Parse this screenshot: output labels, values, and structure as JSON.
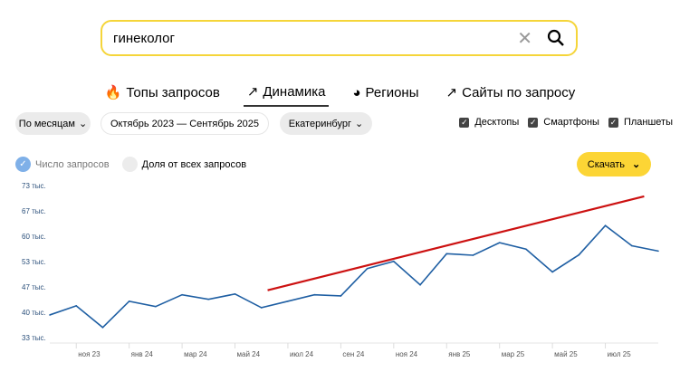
{
  "search": {
    "value": "гинеколог",
    "clear_icon": "close-icon",
    "search_icon": "magnifier-icon"
  },
  "tabs": [
    {
      "label": "Топы запросов",
      "icon": "fire-icon"
    },
    {
      "label": "Динамика",
      "icon": "trend-icon",
      "active": true
    },
    {
      "label": "Регионы",
      "icon": "globe-icon"
    },
    {
      "label": "Сайты по запросу",
      "icon": "external-link-icon"
    }
  ],
  "filters": {
    "period": "По месяцам",
    "range": "Октябрь 2023 — Сентябрь 2025",
    "region": "Екатеринбург"
  },
  "devices": [
    {
      "label": "Десктопы",
      "checked": true
    },
    {
      "label": "Смартфоны",
      "checked": true
    },
    {
      "label": "Планшеты",
      "checked": true
    }
  ],
  "legend": {
    "count": "Число запросов",
    "share": "Доля от всех запросов"
  },
  "download": "Скачать",
  "colors": {
    "accent": "#fcd535",
    "line": "#1f5fa3",
    "trend": "#cc1111",
    "checked_dot": "#7fb0e8"
  },
  "chart_data": {
    "type": "line",
    "x": [
      "окт 23",
      "ноя 23",
      "дек 23",
      "янв 24",
      "фев 24",
      "мар 24",
      "апр 24",
      "май 24",
      "июн 24",
      "июл 24",
      "авг 24",
      "сен 24",
      "окт 24",
      "ноя 24",
      "дек 24",
      "янв 25",
      "фев 25",
      "мар 25",
      "апр 25",
      "май 25",
      "июн 25",
      "июл 25",
      "авг 25",
      "сен 25"
    ],
    "series": [
      {
        "values": [
          39300,
          41700,
          36000,
          42900,
          41500,
          44600,
          43400,
          44800,
          41200,
          42900,
          44600,
          44300,
          51500,
          53400,
          47200,
          55400,
          55000,
          58300,
          56600,
          50600,
          55100,
          62800,
          57500,
          56100
        ]
      }
    ],
    "yticks": [
      "33 тыс.",
      "40 тыс.",
      "47 тыс.",
      "53 тыс.",
      "60 тыс.",
      "67 тыс.",
      "73 тыс."
    ],
    "ytick_values": [
      33333,
      40000,
      46667,
      53333,
      60000,
      66667,
      73333
    ],
    "xticks": [
      "ноя 23",
      "янв 24",
      "мар 24",
      "май 24",
      "июл 24",
      "сен 24",
      "ноя 24",
      "янв 25",
      "мар 25",
      "май 25",
      "июл 25"
    ],
    "ylim": [
      33333,
      73333
    ],
    "annotation": {
      "type": "trend-line",
      "from": {
        "x": "2024-06-08",
        "y": 45800
      },
      "to": {
        "x": "2025-08-15",
        "y": 70500
      }
    }
  }
}
